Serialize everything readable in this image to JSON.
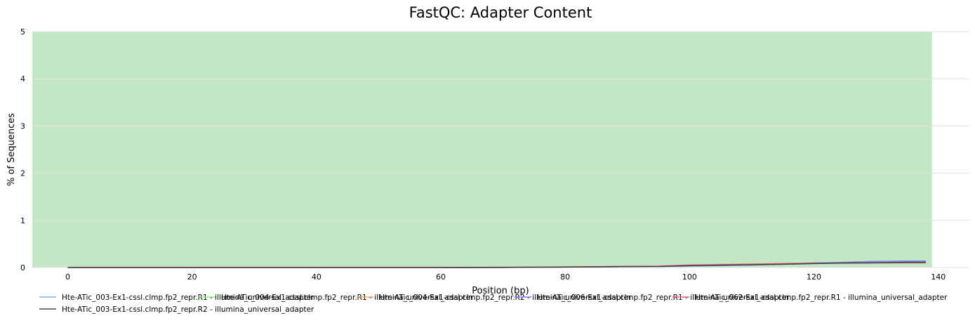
{
  "chart_data": {
    "type": "line",
    "title": "FastQC: Adapter Content",
    "xlabel": "Position (bp)",
    "ylabel": "% of Sequences",
    "xlim": [
      -5.7,
      145
    ],
    "ylim": [
      0,
      5
    ],
    "x_ticks": [
      0,
      20,
      40,
      60,
      80,
      100,
      120,
      140
    ],
    "y_ticks": [
      0,
      1,
      2,
      3,
      4,
      5
    ],
    "grid": true,
    "background_band": {
      "from": 0,
      "to": 5,
      "x_from": -5.7,
      "x_to": 139,
      "color": "#c3e6c5"
    },
    "legend_position": "bottom",
    "series": [
      {
        "name": "Hte-ATic_003-Ex1-cssl.clmp.fp2_repr.R1 - illumina_universal_adapter",
        "color": "#7cb5ec",
        "x": [
          0,
          10,
          20,
          30,
          40,
          50,
          60,
          70,
          75,
          80,
          85,
          90,
          95,
          100,
          105,
          110,
          115,
          120,
          125,
          130,
          135,
          138
        ],
        "y": [
          0,
          0,
          0,
          0,
          0,
          0,
          0,
          0.003,
          0.006,
          0.01,
          0.013,
          0.02,
          0.022,
          0.03,
          0.04,
          0.05,
          0.07,
          0.09,
          0.11,
          0.13,
          0.14,
          0.14
        ]
      },
      {
        "name": "Hte-ATic_004-Ex1-cssl.clmp.fp2_repr.R1 - illumina_universal_adapter",
        "color": "#90ed7d",
        "x": [
          0,
          10,
          20,
          30,
          40,
          50,
          60,
          70,
          75,
          80,
          85,
          90,
          95,
          100,
          105,
          110,
          115,
          120,
          125,
          130,
          135,
          138
        ],
        "y": [
          0,
          0,
          0,
          0,
          0,
          0,
          0,
          0.004,
          0.008,
          0.012,
          0.016,
          0.024,
          0.026,
          0.05,
          0.06,
          0.07,
          0.08,
          0.09,
          0.1,
          0.11,
          0.12,
          0.12
        ]
      },
      {
        "name": "Hte-ATic_004-Ex1-cssl.clmp.fp2_repr.R2 - illumina_universal_adapter",
        "color": "#f7a35c",
        "x": [
          0,
          10,
          20,
          30,
          40,
          50,
          60,
          70,
          75,
          80,
          85,
          90,
          95,
          100,
          105,
          110,
          115,
          120,
          125,
          130,
          135,
          138
        ],
        "y": [
          0,
          0,
          0,
          0,
          0,
          0,
          0,
          0.004,
          0.008,
          0.012,
          0.018,
          0.025,
          0.028,
          0.055,
          0.065,
          0.075,
          0.085,
          0.095,
          0.1,
          0.11,
          0.12,
          0.12
        ]
      },
      {
        "name": "Hte-ATic_006-Ex1-cssl.clmp.fp2_repr.R1 - illumina_universal_adapter",
        "color": "#8085e9",
        "x": [
          0,
          10,
          20,
          30,
          40,
          50,
          60,
          70,
          75,
          80,
          85,
          90,
          95,
          100,
          105,
          110,
          115,
          120,
          125,
          130,
          135,
          138
        ],
        "y": [
          0,
          0,
          0,
          0,
          0,
          0,
          0,
          0.003,
          0.006,
          0.01,
          0.014,
          0.02,
          0.022,
          0.035,
          0.045,
          0.055,
          0.075,
          0.095,
          0.11,
          0.13,
          0.13,
          0.13
        ]
      },
      {
        "name": "Hte-ATic_062-Ex1-cssl.clmp.fp2_repr.R1 - illumina_universal_adapter",
        "color": "#f15c80",
        "x": [
          0,
          10,
          20,
          30,
          40,
          50,
          60,
          70,
          75,
          80,
          85,
          90,
          95,
          100,
          105,
          110,
          115,
          120,
          125,
          130,
          135,
          138
        ],
        "y": [
          0,
          0,
          0,
          0,
          0,
          0,
          0,
          0.004,
          0.008,
          0.012,
          0.016,
          0.026,
          0.028,
          0.05,
          0.06,
          0.07,
          0.08,
          0.09,
          0.095,
          0.1,
          0.1,
          0.1
        ]
      },
      {
        "name": "Hte-ATic_003-Ex1-cssl.clmp.fp2_repr.R2 - illumina_universal_adapter",
        "color": "#434348",
        "x": [
          0,
          10,
          20,
          30,
          40,
          50,
          60,
          70,
          75,
          80,
          85,
          90,
          95,
          100,
          105,
          110,
          115,
          120,
          125,
          130,
          135,
          138
        ],
        "y": [
          0,
          0,
          0,
          0,
          0,
          0,
          0,
          0.003,
          0.006,
          0.01,
          0.013,
          0.02,
          0.022,
          0.04,
          0.05,
          0.06,
          0.07,
          0.085,
          0.095,
          0.1,
          0.11,
          0.11
        ]
      }
    ]
  }
}
